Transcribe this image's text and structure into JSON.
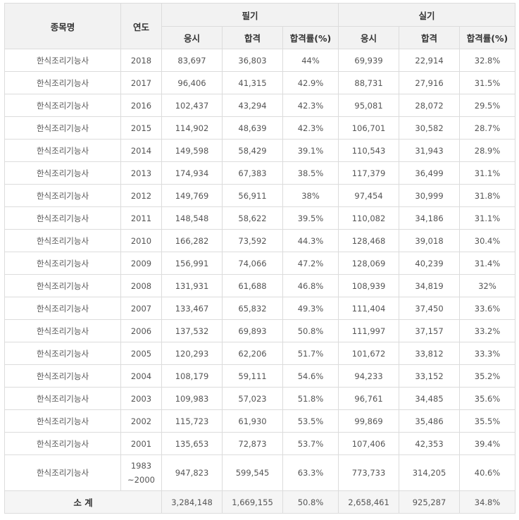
{
  "header": {
    "subject": "종목명",
    "year": "연도",
    "written": "필기",
    "practical": "실기",
    "sub": {
      "applied": "응시",
      "passed": "합격",
      "rate": "합격률(%)"
    }
  },
  "rows": [
    {
      "name": "한식조리기능사",
      "year": "2018",
      "w_applied": "83,697",
      "w_passed": "36,803",
      "w_rate": "44%",
      "p_applied": "69,939",
      "p_passed": "22,914",
      "p_rate": "32.8%"
    },
    {
      "name": "한식조리기능사",
      "year": "2017",
      "w_applied": "96,406",
      "w_passed": "41,315",
      "w_rate": "42.9%",
      "p_applied": "88,731",
      "p_passed": "27,916",
      "p_rate": "31.5%"
    },
    {
      "name": "한식조리기능사",
      "year": "2016",
      "w_applied": "102,437",
      "w_passed": "43,294",
      "w_rate": "42.3%",
      "p_applied": "95,081",
      "p_passed": "28,072",
      "p_rate": "29.5%"
    },
    {
      "name": "한식조리기능사",
      "year": "2015",
      "w_applied": "114,902",
      "w_passed": "48,639",
      "w_rate": "42.3%",
      "p_applied": "106,701",
      "p_passed": "30,582",
      "p_rate": "28.7%"
    },
    {
      "name": "한식조리기능사",
      "year": "2014",
      "w_applied": "149,598",
      "w_passed": "58,429",
      "w_rate": "39.1%",
      "p_applied": "110,543",
      "p_passed": "31,943",
      "p_rate": "28.9%"
    },
    {
      "name": "한식조리기능사",
      "year": "2013",
      "w_applied": "174,934",
      "w_passed": "67,383",
      "w_rate": "38.5%",
      "p_applied": "117,379",
      "p_passed": "36,499",
      "p_rate": "31.1%"
    },
    {
      "name": "한식조리기능사",
      "year": "2012",
      "w_applied": "149,769",
      "w_passed": "56,911",
      "w_rate": "38%",
      "p_applied": "97,454",
      "p_passed": "30,999",
      "p_rate": "31.8%"
    },
    {
      "name": "한식조리기능사",
      "year": "2011",
      "w_applied": "148,548",
      "w_passed": "58,622",
      "w_rate": "39.5%",
      "p_applied": "110,082",
      "p_passed": "34,186",
      "p_rate": "31.1%"
    },
    {
      "name": "한식조리기능사",
      "year": "2010",
      "w_applied": "166,282",
      "w_passed": "73,592",
      "w_rate": "44.3%",
      "p_applied": "128,468",
      "p_passed": "39,018",
      "p_rate": "30.4%"
    },
    {
      "name": "한식조리기능사",
      "year": "2009",
      "w_applied": "156,991",
      "w_passed": "74,066",
      "w_rate": "47.2%",
      "p_applied": "128,069",
      "p_passed": "40,239",
      "p_rate": "31.4%"
    },
    {
      "name": "한식조리기능사",
      "year": "2008",
      "w_applied": "131,931",
      "w_passed": "61,688",
      "w_rate": "46.8%",
      "p_applied": "108,939",
      "p_passed": "34,819",
      "p_rate": "32%"
    },
    {
      "name": "한식조리기능사",
      "year": "2007",
      "w_applied": "133,467",
      "w_passed": "65,832",
      "w_rate": "49.3%",
      "p_applied": "111,404",
      "p_passed": "37,450",
      "p_rate": "33.6%"
    },
    {
      "name": "한식조리기능사",
      "year": "2006",
      "w_applied": "137,532",
      "w_passed": "69,893",
      "w_rate": "50.8%",
      "p_applied": "111,997",
      "p_passed": "37,157",
      "p_rate": "33.2%"
    },
    {
      "name": "한식조리기능사",
      "year": "2005",
      "w_applied": "120,293",
      "w_passed": "62,206",
      "w_rate": "51.7%",
      "p_applied": "101,672",
      "p_passed": "33,812",
      "p_rate": "33.3%"
    },
    {
      "name": "한식조리기능사",
      "year": "2004",
      "w_applied": "108,179",
      "w_passed": "59,111",
      "w_rate": "54.6%",
      "p_applied": "94,233",
      "p_passed": "33,152",
      "p_rate": "35.2%"
    },
    {
      "name": "한식조리기능사",
      "year": "2003",
      "w_applied": "109,983",
      "w_passed": "57,023",
      "w_rate": "51.8%",
      "p_applied": "96,761",
      "p_passed": "34,485",
      "p_rate": "35.6%"
    },
    {
      "name": "한식조리기능사",
      "year": "2002",
      "w_applied": "115,723",
      "w_passed": "61,930",
      "w_rate": "53.5%",
      "p_applied": "99,869",
      "p_passed": "35,486",
      "p_rate": "35.5%"
    },
    {
      "name": "한식조리기능사",
      "year": "2001",
      "w_applied": "135,653",
      "w_passed": "72,873",
      "w_rate": "53.7%",
      "p_applied": "107,406",
      "p_passed": "42,353",
      "p_rate": "39.4%"
    }
  ],
  "range_row": {
    "name": "한식조리기능사",
    "year_start": "1983",
    "year_end": "~2000",
    "w_applied": "947,823",
    "w_passed": "599,545",
    "w_rate": "63.3%",
    "p_applied": "773,733",
    "p_passed": "314,205",
    "p_rate": "40.6%"
  },
  "total": {
    "label": "소 계",
    "w_applied": "3,284,148",
    "w_passed": "1,669,155",
    "w_rate": "50.8%",
    "p_applied": "2,658,461",
    "p_passed": "925,287",
    "p_rate": "34.8%"
  }
}
